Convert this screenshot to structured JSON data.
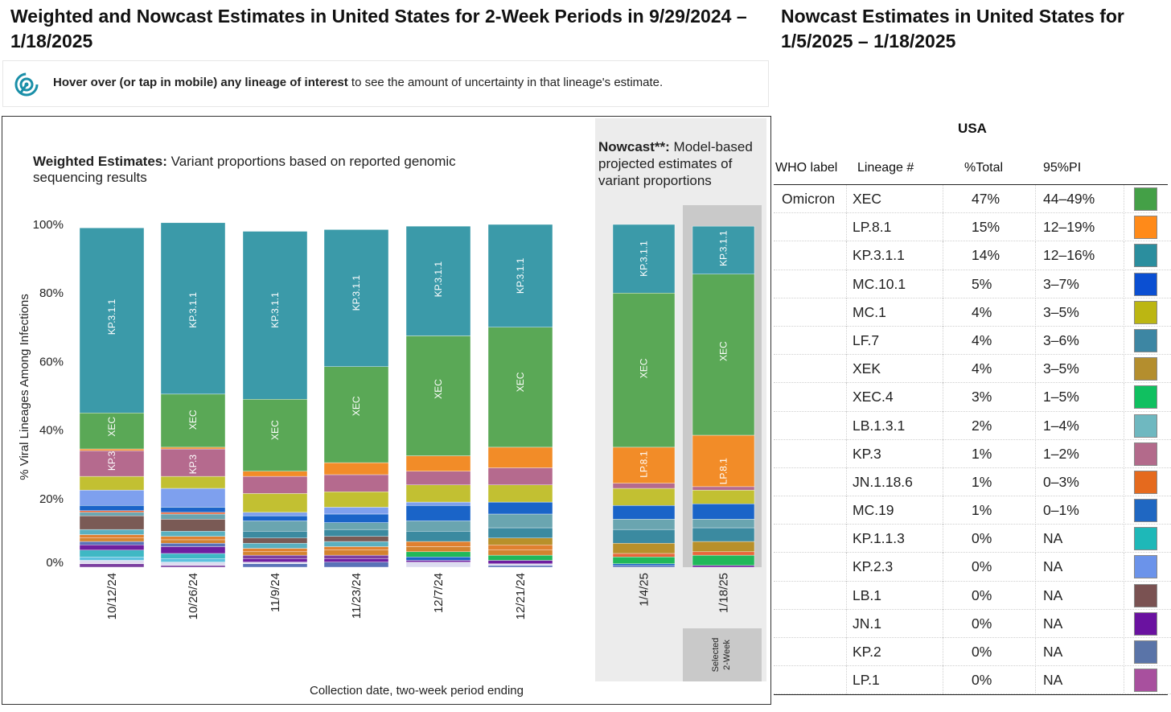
{
  "header": {
    "left_title": "Weighted and Nowcast Estimates in United States for 2-Week Periods in 9/29/2024 – 1/18/2025",
    "right_title": "Nowcast Estimates in United States for 1/5/2025 – 1/18/2025"
  },
  "info": {
    "bold": "Hover over (or tap in mobile) any lineage of interest",
    "rest": " to see the amount of uncertainty in that lineage's estimate."
  },
  "chart_data": {
    "type": "bar",
    "stacked": true,
    "weighted_heading_bold": "Weighted Estimates:",
    "weighted_heading_rest": " Variant proportions based on reported genomic",
    "weighted_heading_line2": "sequencing results",
    "nowcast_heading_bold": "Nowcast**:",
    "nowcast_heading_rest": " Model-based",
    "nowcast_heading_line2": "projected estimates of",
    "nowcast_heading_line3": "variant proportions",
    "ylabel": "% Viral Lineages Among Infections",
    "xlabel": "Collection date, two-week period ending",
    "selected_label_line1": "Selected",
    "selected_label_line2": "2-Week",
    "yticks": [
      "100%",
      "80%",
      "60%",
      "40%",
      "20%",
      "0%"
    ],
    "ylim": [
      0,
      100
    ],
    "categories": [
      "10/12/24",
      "10/26/24",
      "11/9/24",
      "11/23/24",
      "12/7/24",
      "12/21/24",
      "1/4/25",
      "1/18/25"
    ],
    "nowcast_categories": [
      "1/4/25",
      "1/18/25"
    ],
    "selected_category": "1/18/25",
    "bars": [
      {
        "segments": [
          [
            "#7b3fa0",
            1
          ],
          [
            "#dcdcf0",
            1
          ],
          [
            "#5bc0de",
            1
          ],
          [
            "#3fb8c4",
            2
          ],
          [
            "#6f1ea0",
            1.5
          ],
          [
            "#5a72b8",
            1
          ],
          [
            "#d4832f",
            1
          ],
          [
            "#e08030",
            1
          ],
          [
            "#5ab0c0",
            1.5
          ],
          [
            "#7a5a55",
            4
          ],
          [
            "#6aa5b0",
            1
          ],
          [
            "#e8663a",
            0.5
          ],
          [
            "#1a64c8",
            1.5
          ],
          [
            "#7ea0ee",
            4.5
          ],
          [
            "#c2c032",
            4
          ],
          [
            "#b56a8e",
            7.5
          ],
          [
            "#f28c28",
            0.5
          ],
          [
            "#5aa856",
            10.5
          ],
          [
            "#3b9aa9",
            54
          ]
        ],
        "labels": [
          [
            "KP.3",
            31
          ],
          [
            "XEC",
            41
          ],
          [
            "KP.3.1.1",
            73
          ]
        ]
      },
      {
        "segments": [
          [
            "#7b3fa0",
            0.5
          ],
          [
            "#dcdcf0",
            1
          ],
          [
            "#5bc0de",
            1
          ],
          [
            "#3fb8c4",
            1.5
          ],
          [
            "#6f1ea0",
            2
          ],
          [
            "#5a72b8",
            1
          ],
          [
            "#d4832f",
            1
          ],
          [
            "#e08030",
            1
          ],
          [
            "#5ab0c0",
            1.5
          ],
          [
            "#7a5a55",
            3.5
          ],
          [
            "#6aa5b0",
            1.5
          ],
          [
            "#e8663a",
            0.5
          ],
          [
            "#1a64c8",
            1.5
          ],
          [
            "#7ea0ee",
            5.5
          ],
          [
            "#c2c032",
            3.5
          ],
          [
            "#b56a8e",
            8
          ],
          [
            "#f28c28",
            0.5
          ],
          [
            "#5aa856",
            15.5
          ],
          [
            "#3b9aa9",
            50
          ]
        ],
        "labels": [
          [
            "KP.3",
            30
          ],
          [
            "XEC",
            43
          ],
          [
            "KP.3.1.1",
            75
          ]
        ]
      },
      {
        "segments": [
          [
            "#5a72b8",
            1
          ],
          [
            "#dcdcf0",
            0.5
          ],
          [
            "#6f1ea0",
            1
          ],
          [
            "#7b3fa0",
            1
          ],
          [
            "#d4832f",
            1
          ],
          [
            "#e08030",
            1
          ],
          [
            "#5ab0c0",
            1.5
          ],
          [
            "#7a5a55",
            1.5
          ],
          [
            "#3b8aa0",
            2
          ],
          [
            "#6aa5b0",
            3
          ],
          [
            "#1a64c8",
            1.5
          ],
          [
            "#7ea0ee",
            1
          ],
          [
            "#c2c032",
            5.5
          ],
          [
            "#b56a8e",
            5
          ],
          [
            "#f28c28",
            1.5
          ],
          [
            "#5aa856",
            21
          ],
          [
            "#3b9aa9",
            49
          ]
        ],
        "labels": [
          [
            "XEC",
            40
          ],
          [
            "KP.3.1.1",
            75
          ]
        ]
      },
      {
        "segments": [
          [
            "#5a72b8",
            1.5
          ],
          [
            "#6f1ea0",
            1
          ],
          [
            "#7b3fa0",
            1
          ],
          [
            "#d4832f",
            1.5
          ],
          [
            "#e08030",
            1
          ],
          [
            "#5ab0c0",
            1.5
          ],
          [
            "#7a5a55",
            1.5
          ],
          [
            "#3b8aa0",
            2
          ],
          [
            "#6aa5b0",
            2
          ],
          [
            "#1a64c8",
            2.5
          ],
          [
            "#7ea0ee",
            2
          ],
          [
            "#c2c032",
            4.5
          ],
          [
            "#b56a8e",
            5
          ],
          [
            "#f28c28",
            3.5
          ],
          [
            "#5aa856",
            28
          ],
          [
            "#3b9aa9",
            40
          ]
        ],
        "labels": [
          [
            "XEC",
            47
          ],
          [
            "KP.3.1.1",
            80
          ]
        ]
      },
      {
        "segments": [
          [
            "#dcdcf0",
            1.5
          ],
          [
            "#6f1ea0",
            0.5
          ],
          [
            "#1a64c8",
            1
          ],
          [
            "#20b85a",
            1.5
          ],
          [
            "#d4832f",
            1.5
          ],
          [
            "#e08030",
            1.5
          ],
          [
            "#3b8aa0",
            3
          ],
          [
            "#6aa5b0",
            3
          ],
          [
            "#1a64c8",
            4.5
          ],
          [
            "#7ea0ee",
            1
          ],
          [
            "#c2c032",
            5
          ],
          [
            "#b56a8e",
            4
          ],
          [
            "#f28c28",
            4.5
          ],
          [
            "#5aa856",
            35
          ],
          [
            "#3b9aa9",
            32
          ]
        ],
        "labels": [
          [
            "XEC",
            52
          ],
          [
            "KP.3.1.1",
            84
          ]
        ]
      },
      {
        "segments": [
          [
            "#5a72b8",
            0.5
          ],
          [
            "#dcdcf0",
            0.5
          ],
          [
            "#6f1ea0",
            1
          ],
          [
            "#20b85a",
            1.5
          ],
          [
            "#d4832f",
            1.5
          ],
          [
            "#e08030",
            1.5
          ],
          [
            "#b8902a",
            2
          ],
          [
            "#3b8aa0",
            3
          ],
          [
            "#6aa5b0",
            4
          ],
          [
            "#1a64c8",
            3.5
          ],
          [
            "#c2c032",
            5
          ],
          [
            "#b56a8e",
            5
          ],
          [
            "#f28c28",
            6
          ],
          [
            "#5aa856",
            35
          ],
          [
            "#3b9aa9",
            30
          ]
        ],
        "labels": [
          [
            "XEC",
            54
          ],
          [
            "KP.3.1.1",
            85
          ]
        ]
      },
      {
        "segments": [
          [
            "#5a72b8",
            0.5
          ],
          [
            "#1a64c8",
            0.5
          ],
          [
            "#20b85a",
            2
          ],
          [
            "#e8663a",
            1
          ],
          [
            "#b8902a",
            3
          ],
          [
            "#3b8aa0",
            4
          ],
          [
            "#6aa5b0",
            3
          ],
          [
            "#1a64c8",
            4
          ],
          [
            "#c2c032",
            5
          ],
          [
            "#b56a8e",
            1.5
          ],
          [
            "#f28c28",
            10.5
          ],
          [
            "#5aa856",
            45
          ],
          [
            "#3b9aa9",
            20
          ]
        ],
        "labels": [
          [
            "LP.8.1",
            30
          ],
          [
            "XEC",
            58
          ],
          [
            "KP.3.1.1",
            90
          ]
        ]
      },
      {
        "segments": [
          [
            "#6f1ea0",
            0.5
          ],
          [
            "#20b85a",
            3
          ],
          [
            "#e8663a",
            1
          ],
          [
            "#b8902a",
            3
          ],
          [
            "#3b8aa0",
            4
          ],
          [
            "#6aa5b0",
            2.5
          ],
          [
            "#1a64c8",
            4.5
          ],
          [
            "#c2c032",
            4
          ],
          [
            "#b56a8e",
            1
          ],
          [
            "#f28c28",
            15
          ],
          [
            "#5aa856",
            47
          ],
          [
            "#3b9aa9",
            14
          ]
        ],
        "labels": [
          [
            "LP.8.1",
            28
          ],
          [
            "XEC",
            63
          ],
          [
            "KP.3.1.1",
            93
          ]
        ]
      }
    ]
  },
  "table": {
    "region": "USA",
    "headers": {
      "who": "WHO label",
      "lineage": "Lineage #",
      "total": "%Total",
      "pi": "95%PI"
    },
    "who_value": "Omicron",
    "rows": [
      {
        "lineage": "XEC",
        "total": "47%",
        "pi": "44–49%",
        "color": "#44a047"
      },
      {
        "lineage": "LP.8.1",
        "total": "15%",
        "pi": "12–19%",
        "color": "#ff8a19"
      },
      {
        "lineage": "KP.3.1.1",
        "total": "14%",
        "pi": "12–16%",
        "color": "#2b8e9e"
      },
      {
        "lineage": "MC.10.1",
        "total": "5%",
        "pi": "3–7%",
        "color": "#0b4fd2"
      },
      {
        "lineage": "MC.1",
        "total": "4%",
        "pi": "3–5%",
        "color": "#bcb612"
      },
      {
        "lineage": "LF.7",
        "total": "4%",
        "pi": "3–6%",
        "color": "#3d86a3"
      },
      {
        "lineage": "XEK",
        "total": "4%",
        "pi": "3–5%",
        "color": "#b48e2e"
      },
      {
        "lineage": "XEC.4",
        "total": "3%",
        "pi": "1–5%",
        "color": "#10c060"
      },
      {
        "lineage": "LB.1.3.1",
        "total": "2%",
        "pi": "1–4%",
        "color": "#6fb8c0"
      },
      {
        "lineage": "KP.3",
        "total": "1%",
        "pi": "1–2%",
        "color": "#b36a8b"
      },
      {
        "lineage": "JN.1.18.6",
        "total": "1%",
        "pi": "0–3%",
        "color": "#e56a1e"
      },
      {
        "lineage": "MC.19",
        "total": "1%",
        "pi": "0–1%",
        "color": "#1f67c2"
      },
      {
        "lineage": "KP.1.1.3",
        "total": "0%",
        "pi": "NA",
        "color": "#1eb8b8"
      },
      {
        "lineage": "KP.2.3",
        "total": "0%",
        "pi": "NA",
        "color": "#6b93ea"
      },
      {
        "lineage": "LB.1",
        "total": "0%",
        "pi": "NA",
        "color": "#7a5252"
      },
      {
        "lineage": "JN.1",
        "total": "0%",
        "pi": "NA",
        "color": "#6a12a0"
      },
      {
        "lineage": "KP.2",
        "total": "0%",
        "pi": "NA",
        "color": "#5a74a8"
      },
      {
        "lineage": "LP.1",
        "total": "0%",
        "pi": "NA",
        "color": "#a8509e"
      }
    ]
  }
}
